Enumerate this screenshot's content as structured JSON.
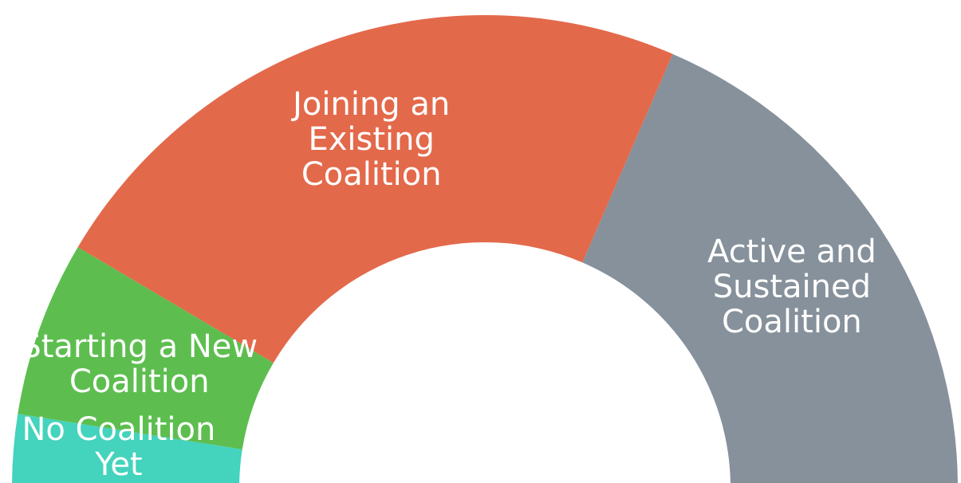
{
  "chart_data": {
    "type": "pie",
    "subtype": "half-donut",
    "series": [
      {
        "label_lines": [
          "No Coalition",
          "Yet"
        ],
        "value": 5,
        "color": "#44d3bd"
      },
      {
        "label_lines": [
          "Starting a New",
          "Coalition"
        ],
        "value": 12,
        "color": "#5dbe4f"
      },
      {
        "label_lines": [
          "Joining an",
          "Existing",
          "Coalition"
        ],
        "value": 46,
        "color": "#e3694b"
      },
      {
        "label_lines": [
          "Active and",
          "Sustained",
          "Coalition"
        ],
        "value": 37,
        "color": "#86919b"
      }
    ],
    "legend": "none",
    "data_labels": "inside"
  }
}
